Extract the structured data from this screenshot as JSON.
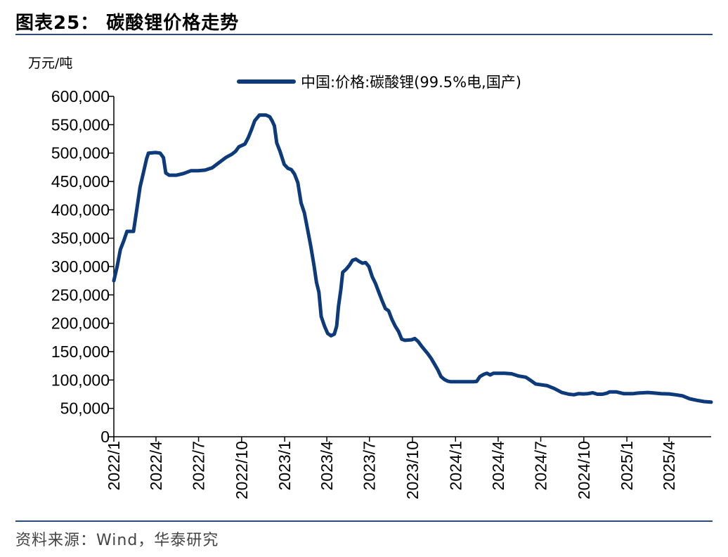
{
  "figure": {
    "title": "图表25： 碳酸锂价格走势",
    "source": "资料来源：Wind，华泰研究"
  },
  "chart_data": {
    "type": "line",
    "title": "",
    "ylabel": "万元/吨",
    "xlabel": "",
    "ylim": [
      0,
      600000
    ],
    "y_ticks": [
      0,
      50000,
      100000,
      150000,
      200000,
      250000,
      300000,
      350000,
      400000,
      450000,
      500000,
      550000,
      600000
    ],
    "y_tick_labels": [
      "0",
      "50,000",
      "100,000",
      "150,000",
      "200,000",
      "250,000",
      "300,000",
      "350,000",
      "400,000",
      "450,000",
      "500,000",
      "550,000",
      "600,000"
    ],
    "x_tick_labels": [
      "2022/1",
      "2022/4",
      "2022/7",
      "2022/10",
      "2023/1",
      "2023/4",
      "2023/7",
      "2023/10",
      "2024/1",
      "2024/4",
      "2024/7",
      "2024/10",
      "2025/1",
      "2025/4"
    ],
    "x_tick_dates": [
      "2022-01-01",
      "2022-04-01",
      "2022-07-01",
      "2022-10-01",
      "2023-01-01",
      "2023-04-01",
      "2023-07-01",
      "2023-10-01",
      "2024-01-01",
      "2024-04-01",
      "2024-07-01",
      "2024-10-01",
      "2025-01-01",
      "2025-04-01"
    ],
    "x_range": [
      "2022-01-01",
      "2025-06-30"
    ],
    "legend_position": "top-center",
    "grid": false,
    "series": [
      {
        "name": "中国:价格:碳酸锂(99.5%电,国产)",
        "color": "#0d3a7a",
        "points": [
          [
            "2022-01-01",
            275000
          ],
          [
            "2022-01-08",
            300000
          ],
          [
            "2022-01-15",
            330000
          ],
          [
            "2022-01-22",
            345000
          ],
          [
            "2022-01-29",
            362000
          ],
          [
            "2022-02-05",
            362000
          ],
          [
            "2022-02-12",
            362000
          ],
          [
            "2022-02-19",
            400000
          ],
          [
            "2022-02-26",
            440000
          ],
          [
            "2022-03-05",
            465000
          ],
          [
            "2022-03-12",
            490000
          ],
          [
            "2022-03-16",
            500000
          ],
          [
            "2022-03-31",
            501000
          ],
          [
            "2022-04-10",
            500000
          ],
          [
            "2022-04-17",
            492000
          ],
          [
            "2022-04-22",
            465000
          ],
          [
            "2022-04-29",
            461000
          ],
          [
            "2022-05-15",
            461000
          ],
          [
            "2022-05-30",
            464000
          ],
          [
            "2022-06-15",
            469000
          ],
          [
            "2022-06-30",
            469000
          ],
          [
            "2022-07-15",
            470000
          ],
          [
            "2022-07-30",
            474000
          ],
          [
            "2022-08-15",
            484000
          ],
          [
            "2022-08-28",
            492000
          ],
          [
            "2022-09-10",
            498000
          ],
          [
            "2022-09-18",
            503000
          ],
          [
            "2022-09-25",
            511000
          ],
          [
            "2022-10-08",
            516000
          ],
          [
            "2022-10-15",
            527000
          ],
          [
            "2022-10-22",
            541000
          ],
          [
            "2022-10-29",
            557000
          ],
          [
            "2022-11-08",
            567000
          ],
          [
            "2022-11-22",
            567000
          ],
          [
            "2022-11-30",
            564000
          ],
          [
            "2022-12-05",
            557000
          ],
          [
            "2022-12-10",
            548000
          ],
          [
            "2022-12-15",
            518000
          ],
          [
            "2022-12-22",
            503000
          ],
          [
            "2022-12-31",
            480000
          ],
          [
            "2023-01-08",
            473000
          ],
          [
            "2023-01-15",
            471000
          ],
          [
            "2023-01-22",
            463000
          ],
          [
            "2023-01-29",
            448000
          ],
          [
            "2023-02-05",
            412000
          ],
          [
            "2023-02-12",
            395000
          ],
          [
            "2023-02-19",
            365000
          ],
          [
            "2023-02-26",
            335000
          ],
          [
            "2023-03-05",
            300000
          ],
          [
            "2023-03-10",
            272000
          ],
          [
            "2023-03-15",
            255000
          ],
          [
            "2023-03-20",
            212000
          ],
          [
            "2023-03-27",
            195000
          ],
          [
            "2023-04-03",
            182000
          ],
          [
            "2023-04-10",
            178000
          ],
          [
            "2023-04-17",
            181000
          ],
          [
            "2023-04-22",
            195000
          ],
          [
            "2023-04-26",
            230000
          ],
          [
            "2023-05-01",
            260000
          ],
          [
            "2023-05-05",
            290000
          ],
          [
            "2023-05-12",
            295000
          ],
          [
            "2023-05-19",
            302000
          ],
          [
            "2023-05-26",
            311000
          ],
          [
            "2023-06-02",
            313000
          ],
          [
            "2023-06-09",
            309000
          ],
          [
            "2023-06-16",
            306000
          ],
          [
            "2023-06-23",
            307000
          ],
          [
            "2023-06-30",
            300000
          ],
          [
            "2023-07-07",
            282000
          ],
          [
            "2023-07-14",
            270000
          ],
          [
            "2023-07-21",
            255000
          ],
          [
            "2023-07-28",
            240000
          ],
          [
            "2023-08-04",
            226000
          ],
          [
            "2023-08-11",
            222000
          ],
          [
            "2023-08-18",
            207000
          ],
          [
            "2023-08-25",
            195000
          ],
          [
            "2023-09-01",
            186000
          ],
          [
            "2023-09-08",
            172000
          ],
          [
            "2023-09-15",
            170000
          ],
          [
            "2023-09-29",
            171000
          ],
          [
            "2023-10-06",
            173000
          ],
          [
            "2023-10-13",
            168000
          ],
          [
            "2023-10-20",
            160000
          ],
          [
            "2023-10-27",
            153000
          ],
          [
            "2023-11-03",
            146000
          ],
          [
            "2023-11-10",
            138000
          ],
          [
            "2023-11-17",
            128000
          ],
          [
            "2023-11-24",
            118000
          ],
          [
            "2023-12-01",
            106000
          ],
          [
            "2023-12-08",
            101000
          ],
          [
            "2023-12-15",
            98000
          ],
          [
            "2023-12-22",
            97000
          ],
          [
            "2024-01-15",
            97000
          ],
          [
            "2024-02-08",
            97000
          ],
          [
            "2024-02-15",
            97500
          ],
          [
            "2024-02-22",
            106000
          ],
          [
            "2024-03-01",
            110000
          ],
          [
            "2024-03-08",
            112000
          ],
          [
            "2024-03-15",
            109000
          ],
          [
            "2024-03-22",
            112000
          ],
          [
            "2024-04-15",
            112000
          ],
          [
            "2024-04-30",
            111000
          ],
          [
            "2024-05-15",
            107000
          ],
          [
            "2024-05-30",
            105000
          ],
          [
            "2024-06-10",
            99000
          ],
          [
            "2024-06-20",
            93000
          ],
          [
            "2024-07-15",
            90000
          ],
          [
            "2024-07-30",
            85000
          ],
          [
            "2024-08-15",
            78000
          ],
          [
            "2024-08-30",
            75000
          ],
          [
            "2024-09-10",
            74000
          ],
          [
            "2024-09-20",
            76000
          ],
          [
            "2024-09-30",
            75500
          ],
          [
            "2024-10-10",
            76000
          ],
          [
            "2024-10-20",
            77500
          ],
          [
            "2024-10-30",
            75000
          ],
          [
            "2024-11-10",
            75000
          ],
          [
            "2024-11-20",
            77000
          ],
          [
            "2024-11-25",
            79000
          ],
          [
            "2024-12-10",
            79000
          ],
          [
            "2024-12-25",
            76000
          ],
          [
            "2025-01-15",
            76000
          ],
          [
            "2025-01-25",
            77000
          ],
          [
            "2025-02-15",
            78000
          ],
          [
            "2025-03-01",
            77000
          ],
          [
            "2025-03-15",
            76000
          ],
          [
            "2025-04-01",
            75500
          ],
          [
            "2025-04-15",
            74000
          ],
          [
            "2025-04-30",
            72000
          ],
          [
            "2025-05-15",
            67000
          ],
          [
            "2025-06-01",
            64000
          ],
          [
            "2025-06-15",
            62000
          ],
          [
            "2025-06-30",
            61000
          ]
        ]
      }
    ]
  }
}
